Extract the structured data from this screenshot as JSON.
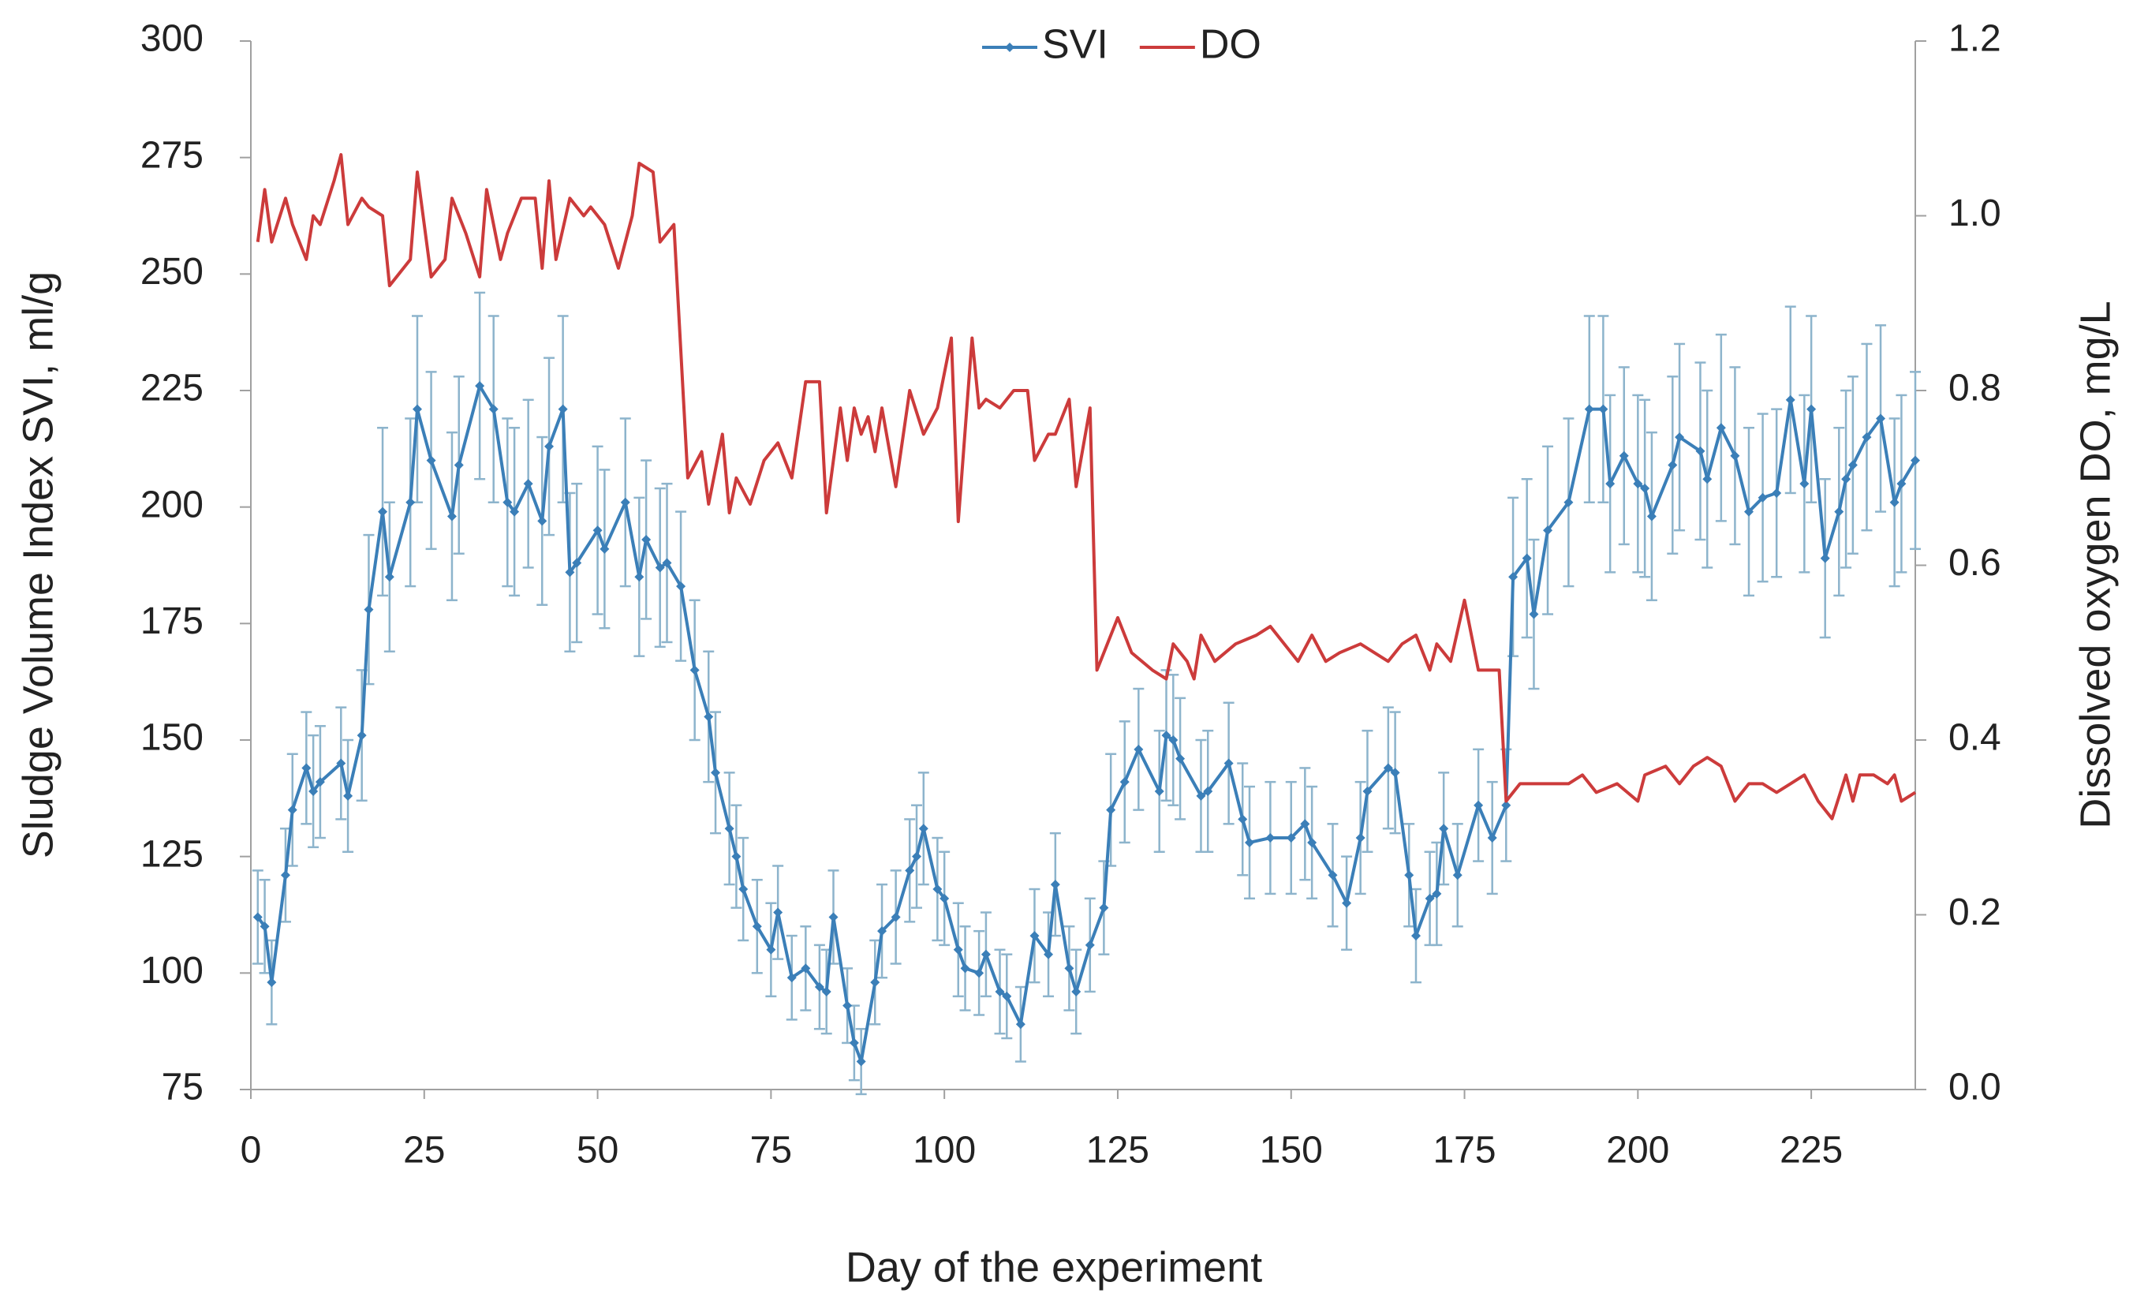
{
  "chart_data": {
    "type": "line",
    "xlabel": "Day of the experiment",
    "ylabel": "Sludge Volume Index SVI, ml/g",
    "y2label": "Dissolved oxygen DO, mg/L",
    "xlim": [
      0,
      240
    ],
    "xticks": [
      0,
      25,
      50,
      75,
      100,
      125,
      150,
      175,
      200,
      225
    ],
    "ylim": [
      75,
      300
    ],
    "yticks": [
      75,
      100,
      125,
      150,
      175,
      200,
      225,
      250,
      275,
      300
    ],
    "y2lim": [
      0,
      1.2
    ],
    "y2ticks": [
      {
        "value": 0,
        "label": "0.0"
      },
      0.2,
      0.4,
      0.6,
      0.8,
      {
        "value": 1,
        "label": "1.0"
      },
      1.2
    ],
    "legend": "top",
    "series": [
      {
        "name": "SVI",
        "color": "#3b7fb8",
        "error_color": "#8db4cc",
        "x": [
          1,
          2,
          3,
          5,
          6,
          8,
          9,
          10,
          13,
          14,
          16,
          17,
          19,
          20,
          23,
          24,
          26,
          29,
          30,
          33,
          35,
          37,
          38,
          40,
          42,
          43,
          45,
          46,
          47,
          50,
          51,
          54,
          56,
          57,
          59,
          60,
          62,
          64,
          66,
          67,
          69,
          70,
          71,
          73,
          75,
          76,
          78,
          80,
          82,
          83,
          84,
          86,
          87,
          88,
          90,
          91,
          93,
          95,
          96,
          97,
          99,
          100,
          102,
          103,
          105,
          106,
          108,
          109,
          111,
          113,
          115,
          116,
          118,
          119,
          121,
          123,
          124,
          126,
          128,
          131,
          132,
          133,
          134,
          137,
          138,
          141,
          143,
          144,
          147,
          150,
          152,
          153,
          156,
          158,
          160,
          161,
          164,
          165,
          167,
          168,
          170,
          171,
          172,
          174,
          177,
          179,
          181,
          182,
          184,
          185,
          187,
          190,
          193,
          195,
          196,
          198,
          200,
          201,
          202,
          205,
          206,
          209,
          210,
          212,
          214,
          216,
          218,
          220,
          222,
          224,
          225,
          227,
          229,
          230,
          231,
          233,
          235,
          237,
          238,
          240
        ],
        "values": [
          112,
          110,
          98,
          121,
          135,
          144,
          139,
          141,
          145,
          138,
          151,
          178,
          199,
          185,
          201,
          221,
          210,
          198,
          209,
          226,
          221,
          201,
          199,
          205,
          197,
          213,
          221,
          186,
          188,
          195,
          191,
          201,
          185,
          193,
          187,
          188,
          183,
          165,
          155,
          143,
          131,
          125,
          118,
          110,
          105,
          113,
          99,
          101,
          97,
          96,
          112,
          93,
          85,
          81,
          98,
          109,
          112,
          122,
          125,
          131,
          118,
          116,
          105,
          101,
          100,
          104,
          96,
          95,
          89,
          108,
          104,
          119,
          101,
          96,
          106,
          114,
          135,
          141,
          148,
          139,
          151,
          150,
          146,
          138,
          139,
          145,
          133,
          128,
          129,
          129,
          132,
          128,
          121,
          115,
          129,
          139,
          144,
          143,
          121,
          108,
          116,
          117,
          131,
          121,
          136,
          129,
          136,
          185,
          189,
          177,
          195,
          201,
          221,
          221,
          205,
          211,
          205,
          204,
          198,
          209,
          215,
          212,
          206,
          217,
          211,
          199,
          202,
          203,
          223,
          205,
          221,
          189,
          199,
          206,
          209,
          215,
          219,
          201,
          205,
          210
        ],
        "errors": [
          10,
          10,
          9,
          10,
          12,
          12,
          12,
          12,
          12,
          12,
          14,
          16,
          18,
          16,
          18,
          20,
          19,
          18,
          19,
          20,
          20,
          18,
          18,
          18,
          18,
          19,
          20,
          17,
          17,
          18,
          17,
          18,
          17,
          17,
          17,
          17,
          16,
          15,
          14,
          13,
          12,
          11,
          11,
          10,
          10,
          10,
          9,
          9,
          9,
          9,
          10,
          8,
          8,
          7,
          9,
          10,
          10,
          11,
          11,
          12,
          11,
          10,
          10,
          9,
          9,
          9,
          9,
          9,
          8,
          10,
          9,
          11,
          9,
          9,
          10,
          10,
          12,
          13,
          13,
          13,
          14,
          14,
          13,
          12,
          13,
          13,
          12,
          12,
          12,
          12,
          12,
          12,
          11,
          10,
          12,
          13,
          13,
          13,
          11,
          10,
          10,
          11,
          12,
          11,
          12,
          12,
          12,
          17,
          17,
          16,
          18,
          18,
          20,
          20,
          19,
          19,
          19,
          19,
          18,
          19,
          20,
          19,
          19,
          20,
          19,
          18,
          18,
          18,
          20,
          19,
          20,
          17,
          18,
          19,
          19,
          20,
          20,
          18,
          19,
          19
        ]
      },
      {
        "name": "DO",
        "color": "#cc3b3b",
        "axis": "y2",
        "x": [
          1,
          2,
          3,
          5,
          6,
          8,
          9,
          10,
          12,
          13,
          14,
          16,
          17,
          19,
          20,
          22,
          23,
          24,
          26,
          28,
          29,
          31,
          33,
          34,
          36,
          37,
          39,
          41,
          42,
          43,
          44,
          46,
          48,
          49,
          51,
          53,
          55,
          56,
          58,
          59,
          61,
          63,
          65,
          66,
          68,
          69,
          70,
          72,
          74,
          76,
          78,
          80,
          82,
          83,
          85,
          86,
          87,
          88,
          89,
          90,
          91,
          93,
          95,
          97,
          99,
          101,
          102,
          104,
          105,
          106,
          108,
          110,
          112,
          113,
          115,
          116,
          118,
          119,
          121,
          122,
          123,
          125,
          127,
          130,
          132,
          133,
          135,
          136,
          137,
          139,
          142,
          145,
          147,
          150,
          151,
          153,
          155,
          157,
          160,
          162,
          164,
          166,
          168,
          170,
          171,
          173,
          175,
          177,
          178,
          180,
          181,
          183,
          185,
          190,
          192,
          194,
          197,
          200,
          201,
          204,
          206,
          208,
          210,
          212,
          214,
          216,
          218,
          220,
          222,
          224,
          226,
          228,
          230,
          231,
          232,
          234,
          236,
          237,
          238,
          240
        ],
        "values": [
          0.97,
          1.03,
          0.97,
          1.02,
          0.99,
          0.95,
          1.0,
          0.99,
          1.04,
          1.07,
          0.99,
          1.02,
          1.01,
          1.0,
          0.92,
          0.94,
          0.95,
          1.05,
          0.93,
          0.95,
          1.02,
          0.98,
          0.93,
          1.03,
          0.95,
          0.98,
          1.02,
          1.02,
          0.94,
          1.04,
          0.95,
          1.02,
          1.0,
          1.01,
          0.99,
          0.94,
          1.0,
          1.06,
          1.05,
          0.97,
          0.99,
          0.7,
          0.73,
          0.67,
          0.75,
          0.66,
          0.7,
          0.67,
          0.72,
          0.74,
          0.7,
          0.81,
          0.81,
          0.66,
          0.78,
          0.72,
          0.78,
          0.75,
          0.77,
          0.73,
          0.78,
          0.69,
          0.8,
          0.75,
          0.78,
          0.86,
          0.65,
          0.86,
          0.78,
          0.79,
          0.78,
          0.8,
          0.8,
          0.72,
          0.75,
          0.75,
          0.79,
          0.69,
          0.78,
          0.48,
          0.5,
          0.54,
          0.5,
          0.48,
          0.47,
          0.51,
          0.49,
          0.47,
          0.52,
          0.49,
          0.51,
          0.52,
          0.53,
          0.5,
          0.49,
          0.52,
          0.49,
          0.5,
          0.51,
          0.5,
          0.49,
          0.51,
          0.52,
          0.48,
          0.51,
          0.49,
          0.56,
          0.48,
          0.48,
          0.48,
          0.33,
          0.35,
          0.35,
          0.35,
          0.36,
          0.34,
          0.35,
          0.33,
          0.36,
          0.37,
          0.35,
          0.37,
          0.38,
          0.37,
          0.33,
          0.35,
          0.35,
          0.34,
          0.35,
          0.36,
          0.33,
          0.31,
          0.36,
          0.33,
          0.36,
          0.36,
          0.35,
          0.36,
          0.33,
          0.34
        ]
      }
    ]
  }
}
